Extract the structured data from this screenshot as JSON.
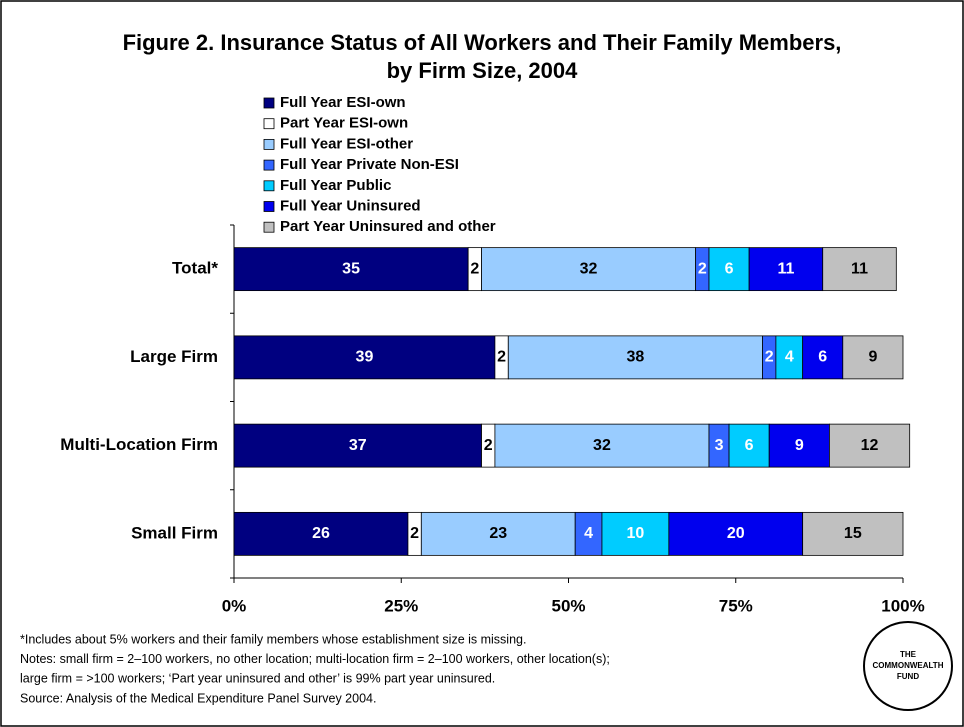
{
  "chart_data": {
    "type": "stacked-barh",
    "title": [
      "Figure 2. Insurance Status of All Workers and Their Family Members,",
      "by Firm Size, 2004"
    ],
    "categories": [
      "Total*",
      "Large Firm",
      "Multi-Location Firm",
      "Small Firm"
    ],
    "series": [
      {
        "name": "Full Year ESI-own",
        "color": "#000080",
        "values": [
          35,
          39,
          37,
          26
        ]
      },
      {
        "name": "Part Year ESI-own",
        "color": "#ffffff",
        "values": [
          2,
          2,
          2,
          2
        ]
      },
      {
        "name": "Full Year ESI-other",
        "color": "#99ccff",
        "values": [
          32,
          38,
          32,
          23
        ]
      },
      {
        "name": "Full Year Private Non-ESI",
        "color": "#3366ff",
        "values": [
          2,
          2,
          3,
          4
        ]
      },
      {
        "name": "Full Year Public",
        "color": "#00ccff",
        "values": [
          6,
          4,
          6,
          10
        ]
      },
      {
        "name": "Full Year Uninsured",
        "color": "#0000ee",
        "values": [
          11,
          6,
          9,
          20
        ]
      },
      {
        "name": "Part Year Uninsured and other",
        "color": "#c0c0c0",
        "values": [
          11,
          9,
          12,
          15
        ]
      }
    ],
    "xlim": [
      0,
      100
    ],
    "xticks": [
      {
        "value": 0,
        "label": "0%"
      },
      {
        "value": 25,
        "label": "25%"
      },
      {
        "value": 50,
        "label": "50%"
      },
      {
        "value": 75,
        "label": "75%"
      },
      {
        "value": 100,
        "label": "100%"
      }
    ],
    "legend": "top",
    "notes": [
      "*Includes about 5% workers and their family members whose establishment size is missing.",
      "Notes: small firm = 2–100 workers, no other location; multi-location firm =  2–100 workers, other location(s);",
      "large firm =  >100 workers; ‘Part year uninsured and other’ is 99% part year uninsured.",
      "Source: Analysis of the Medical Expenditure Panel Survey 2004."
    ],
    "logo": [
      "THE",
      "COMMONWEALTH",
      "FUND"
    ]
  }
}
